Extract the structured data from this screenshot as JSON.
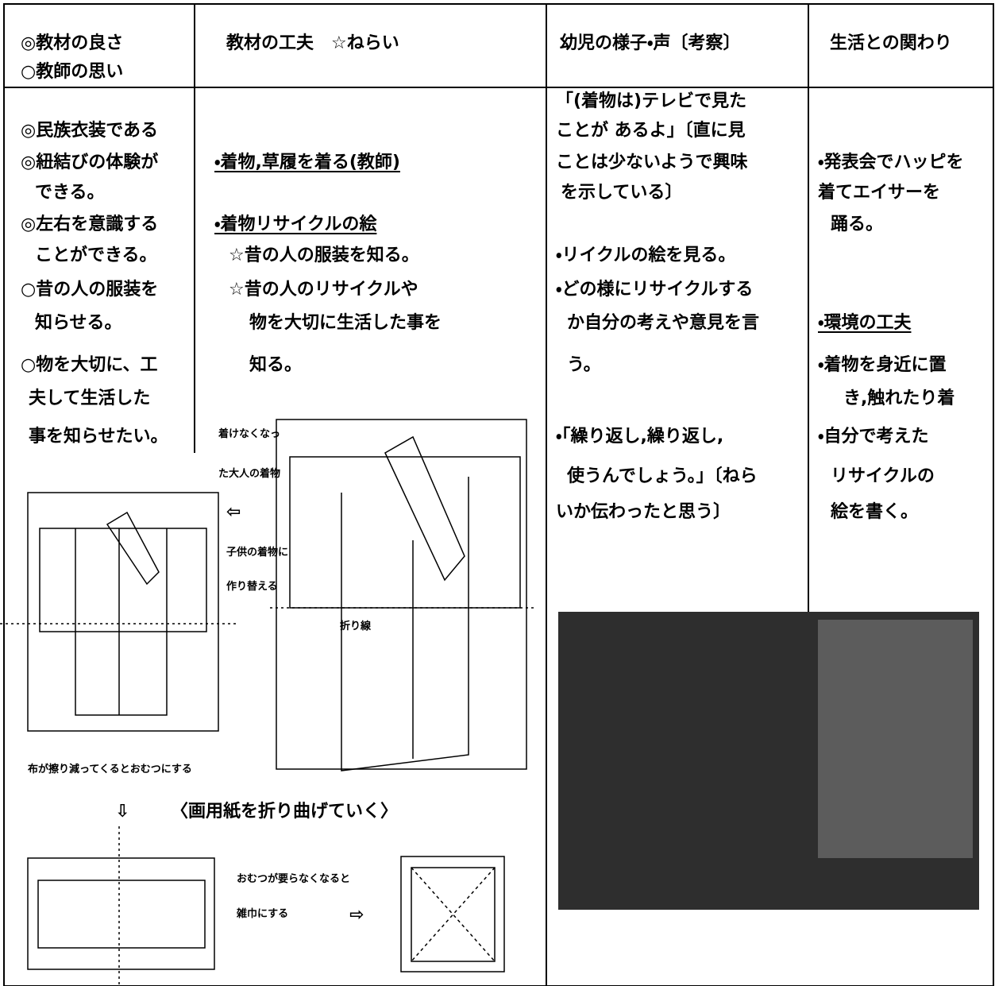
{
  "header": {
    "col1": [
      "◎教材の良さ",
      "○教師の思い"
    ],
    "col2": "教材の工夫　☆ねらい",
    "col3": "幼児の様子・声〔考察〕",
    "col4": "生活との関わり"
  },
  "columns": [
    {
      "lines": [
        "◎民族衣装である",
        "◎紐結びの体験が",
        "できる。",
        "◎左右を意識する",
        "ことができる。",
        "○昔の人の服装を",
        "知らせる。",
        "○物を大切に、工",
        "夫して生活した",
        "事を知らせたい。"
      ]
    },
    {
      "lines": [
        "・着物,草履を着る(教師)",
        "・着物リサイクルの絵",
        "☆昔の人の服装を知る。",
        "☆昔の人のリサイクルや",
        "物を大切に生活した事を",
        "知る。"
      ]
    },
    {
      "lines": [
        "「(着物は)テレビで見た",
        "ことが あるよ」〔直に見",
        "ことは少ないようで興味",
        "を示している〕",
        "・リイクルの絵を見る。",
        "・どの様にリサイクルする",
        "か自分の考えや意見を言",
        "う。",
        "・「繰り返し,繰り返し,",
        "使うんでしょう。」〔ねら",
        "いか伝わったと思う〕"
      ]
    },
    {
      "lines": [
        "・発表会でハッピを",
        "着てエイサーを",
        "踊る。",
        "・環境の工夫",
        "・着物を身近に置",
        "き,触れたり着",
        "・自分で考えた",
        "リサイクルの",
        "絵を書く。"
      ]
    }
  ],
  "figure": {
    "labels": [
      "着けなくなっ",
      "た大人の着物",
      "⇦",
      "子供の着物に",
      "作り替える",
      "折り線",
      "布が擦り減ってくるとおむつにする",
      "⇩",
      "〈画用紙を折り曲げていく〉",
      "おむつが要らなくなると",
      "雑巾にする",
      "⇨"
    ]
  }
}
